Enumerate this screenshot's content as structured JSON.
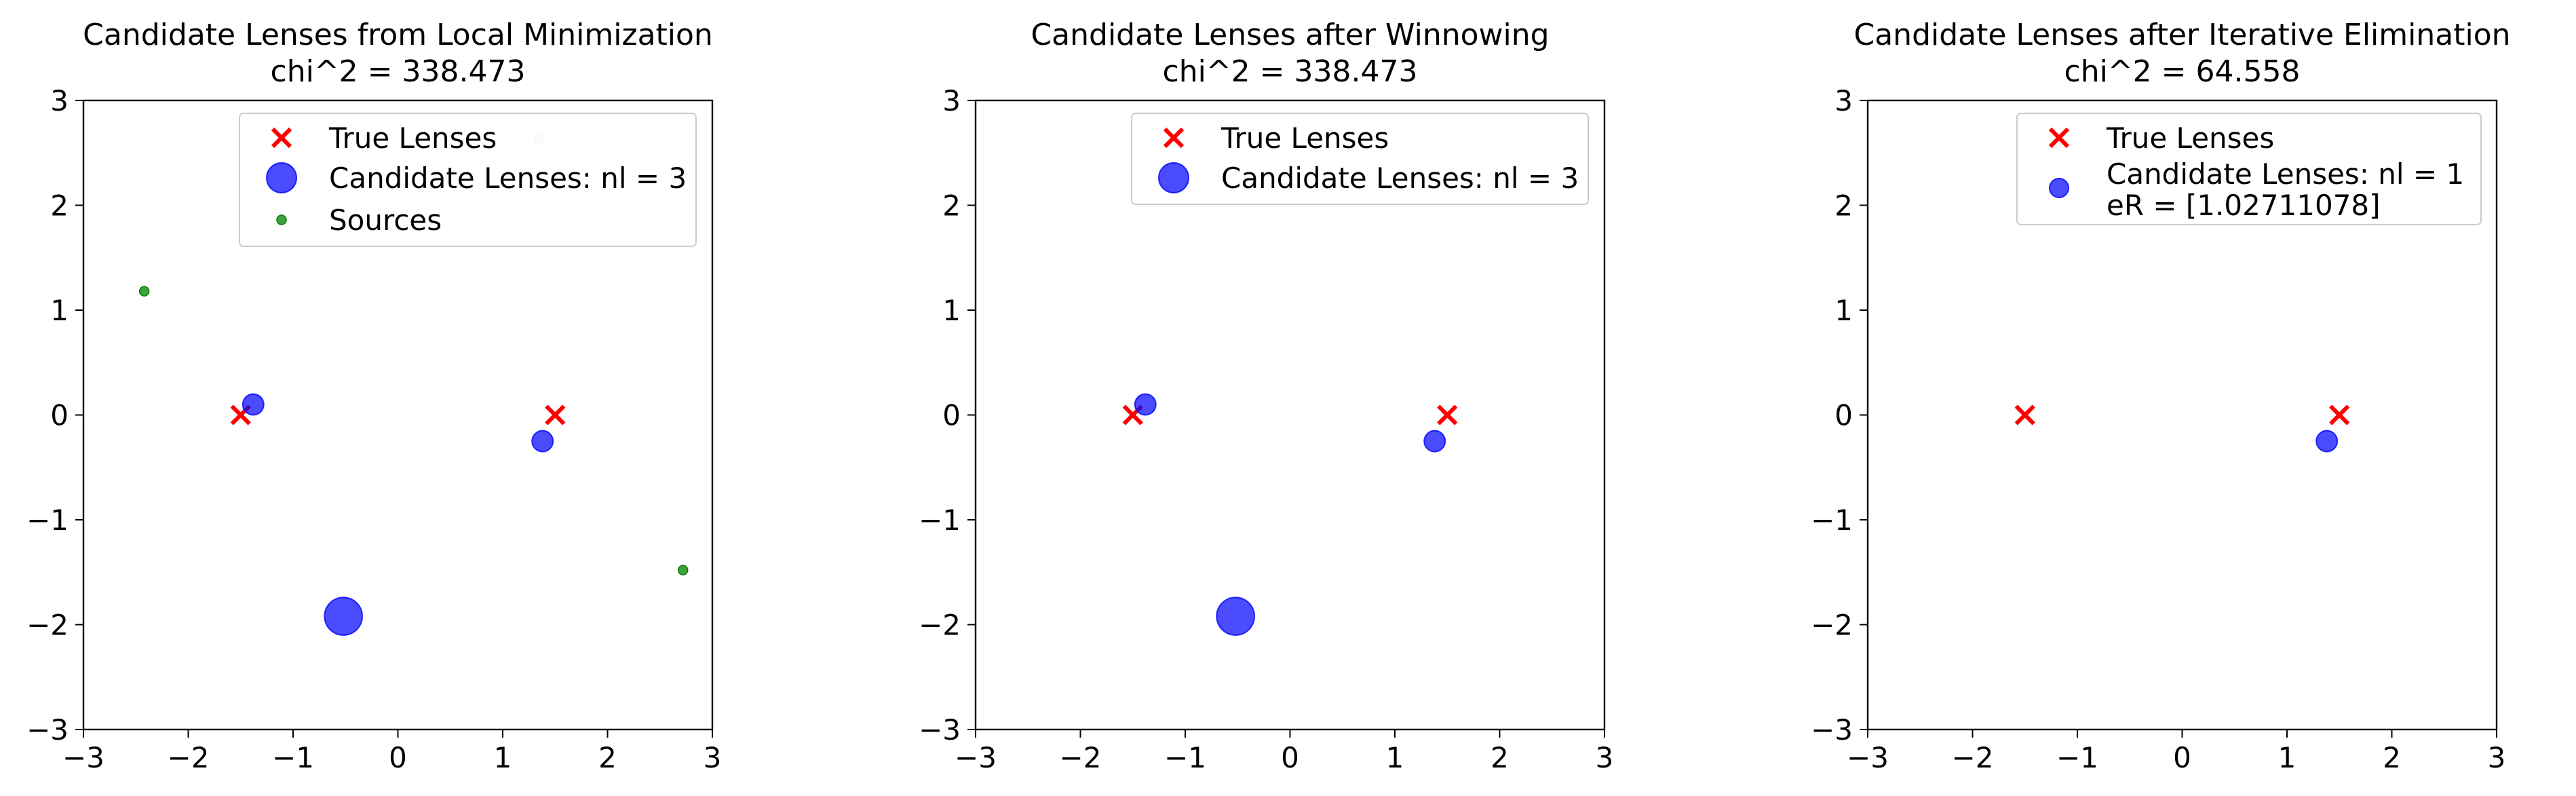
{
  "chart_data": [
    {
      "type": "scatter",
      "title": "Candidate Lenses from Local Minimization",
      "subtitle": "chi^2 = 338.473",
      "xlim": [
        -3,
        3
      ],
      "ylim": [
        -3,
        3
      ],
      "xticks": [
        "−3",
        "−2",
        "−1",
        "0",
        "1",
        "2",
        "3"
      ],
      "yticks": [
        "−3",
        "−2",
        "−1",
        "0",
        "1",
        "2",
        "3"
      ],
      "grid": false,
      "legend_position": "upper-right",
      "series": [
        {
          "name": "True Lenses",
          "marker": "x",
          "color": "#ff0000",
          "points": [
            {
              "x": -1.5,
              "y": 0
            },
            {
              "x": 1.5,
              "y": 0
            }
          ]
        },
        {
          "name": "Candidate Lenses: nl = 3",
          "marker": "circle",
          "color": "#0000ff",
          "points": [
            {
              "x": -1.38,
              "y": 0.1,
              "r": 0.1
            },
            {
              "x": 1.38,
              "y": -0.25,
              "r": 0.1
            },
            {
              "x": -0.52,
              "y": -1.92,
              "r": 0.18
            }
          ]
        },
        {
          "name": "Sources",
          "marker": "dot",
          "color": "#008000",
          "points": [
            {
              "x": -2.42,
              "y": 1.18
            },
            {
              "x": 2.72,
              "y": -1.48
            },
            {
              "x": 1.34,
              "y": 2.64,
              "faded": true
            }
          ]
        }
      ]
    },
    {
      "type": "scatter",
      "title": "Candidate Lenses after Winnowing",
      "subtitle": "chi^2 = 338.473",
      "xlim": [
        -3,
        3
      ],
      "ylim": [
        -3,
        3
      ],
      "xticks": [
        "−3",
        "−2",
        "−1",
        "0",
        "1",
        "2",
        "3"
      ],
      "yticks": [
        "−3",
        "−2",
        "−1",
        "0",
        "1",
        "2",
        "3"
      ],
      "grid": false,
      "legend_position": "upper-right",
      "series": [
        {
          "name": "True Lenses",
          "marker": "x",
          "color": "#ff0000",
          "points": [
            {
              "x": -1.5,
              "y": 0
            },
            {
              "x": 1.5,
              "y": 0
            }
          ]
        },
        {
          "name": "Candidate Lenses: nl = 3",
          "marker": "circle",
          "color": "#0000ff",
          "points": [
            {
              "x": -1.38,
              "y": 0.1,
              "r": 0.1
            },
            {
              "x": 1.38,
              "y": -0.25,
              "r": 0.1
            },
            {
              "x": -0.52,
              "y": -1.92,
              "r": 0.18
            }
          ]
        }
      ]
    },
    {
      "type": "scatter",
      "title": "Candidate Lenses after Iterative Elimination",
      "subtitle": "chi^2 = 64.558",
      "xlim": [
        -3,
        3
      ],
      "ylim": [
        -3,
        3
      ],
      "xticks": [
        "−3",
        "−2",
        "−1",
        "0",
        "1",
        "2",
        "3"
      ],
      "yticks": [
        "−3",
        "−2",
        "−1",
        "0",
        "1",
        "2",
        "3"
      ],
      "grid": false,
      "legend_position": "upper-right",
      "series": [
        {
          "name": "True Lenses",
          "marker": "x",
          "color": "#ff0000",
          "points": [
            {
              "x": -1.5,
              "y": 0
            },
            {
              "x": 1.5,
              "y": 0
            }
          ]
        },
        {
          "name": "Candidate Lenses: nl = 1",
          "name_line2": " eR = [1.02711078]",
          "marker": "circle",
          "color": "#0000ff",
          "points": [
            {
              "x": 1.38,
              "y": -0.25,
              "r": 0.1
            }
          ]
        }
      ]
    }
  ]
}
